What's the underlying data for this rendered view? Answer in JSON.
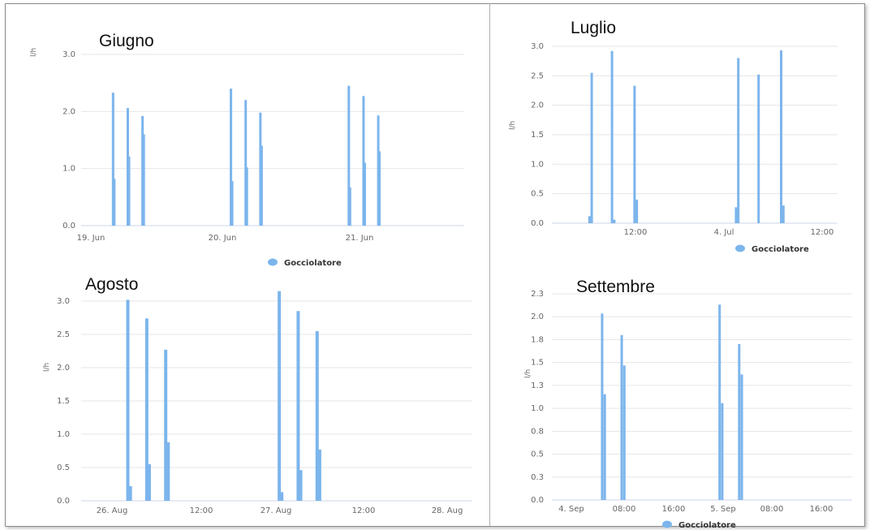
{
  "chart_data": [
    {
      "type": "bar",
      "title": "Giugno",
      "ylabel": "l/h",
      "ylim": [
        0,
        3.0
      ],
      "yticks": [
        "0.0",
        "1.0",
        "2.0",
        "3.0"
      ],
      "xticks": [
        "19. Jun",
        "20. Jun",
        "21. Jun"
      ],
      "xrange_hours": [
        0,
        78
      ],
      "legend": "Gocciolatore",
      "legend_position": "bottom",
      "series": [
        {
          "name": "Gocciolatore",
          "x_hours": [
            6.5,
            6.75,
            9.5,
            9.75,
            12.5,
            12.75,
            30.5,
            30.75,
            33.5,
            33.75,
            36.5,
            36.75,
            54.5,
            54.75,
            57.5,
            57.75,
            60.5,
            60.75
          ],
          "values": [
            2.33,
            0.82,
            2.06,
            1.21,
            1.92,
            1.6,
            2.4,
            0.78,
            2.2,
            1.02,
            1.98,
            1.4,
            2.45,
            0.67,
            2.27,
            1.1,
            1.93,
            1.3
          ]
        }
      ]
    },
    {
      "type": "bar",
      "title": "Luglio",
      "ylabel": "l/h",
      "ylim": [
        0,
        3.0
      ],
      "yticks": [
        "0.0",
        "0.5",
        "1.0",
        "1.5",
        "2.0",
        "2.5",
        "3.0"
      ],
      "xticks": [
        "12:00",
        "4. Jul",
        "12:00"
      ],
      "xrange_hours": [
        0,
        38
      ],
      "legend": "Gocciolatore",
      "legend_position": "bottom",
      "series": [
        {
          "name": "Gocciolatore",
          "x_hours": [
            5,
            5.3,
            8,
            8.3,
            11,
            11.3,
            24.5,
            24.8,
            27.5,
            27.8,
            30.5,
            30.8
          ],
          "values": [
            0.12,
            2.55,
            2.92,
            0.06,
            2.33,
            0.4,
            0.27,
            2.8,
            2.52,
            0.0,
            2.93,
            0.3
          ]
        }
      ]
    },
    {
      "type": "bar",
      "title": "Agosto",
      "ylabel": "l/h",
      "ylim": [
        0,
        3.0
      ],
      "yticks": [
        "0.0",
        "0.5",
        "1.0",
        "1.5",
        "2.0",
        "2.5",
        "3.0"
      ],
      "xticks": [
        "26. Aug",
        "12:00",
        "27. Aug",
        "12:00",
        "28. Aug"
      ],
      "xrange_hours": [
        0,
        62
      ],
      "legend": "",
      "legend_position": "bottom",
      "series": [
        {
          "name": "Gocciolatore",
          "x_hours": [
            7.4,
            7.8,
            10.4,
            10.8,
            13.4,
            13.8,
            31.4,
            31.8,
            34.4,
            34.8,
            37.4,
            37.8
          ],
          "values": [
            3.02,
            0.22,
            2.74,
            0.55,
            2.27,
            0.88,
            3.15,
            0.13,
            2.85,
            0.46,
            2.55,
            0.77
          ]
        }
      ]
    },
    {
      "type": "bar",
      "title": "Settembre",
      "ylabel": "l/h",
      "ylim": [
        0,
        2.3
      ],
      "yticks": [
        "0.0",
        "0.3",
        "0.5",
        "0.8",
        "1.0",
        "1.3",
        "1.5",
        "1.8",
        "2.0",
        "2.3"
      ],
      "xticks": [
        "4. Sep",
        "08:00",
        "16:00",
        "5. Sep",
        "08:00",
        "16:00"
      ],
      "xrange_hours": [
        0,
        46
      ],
      "legend": "Gocciolatore",
      "legend_position": "bottom",
      "series": [
        {
          "name": "Gocciolatore",
          "x_hours": [
            7.7,
            8.1,
            10.7,
            11.1,
            25.7,
            26.1,
            28.7,
            29.1
          ],
          "values": [
            2.08,
            1.18,
            1.84,
            1.5,
            2.18,
            1.08,
            1.74,
            1.4
          ]
        }
      ]
    }
  ]
}
